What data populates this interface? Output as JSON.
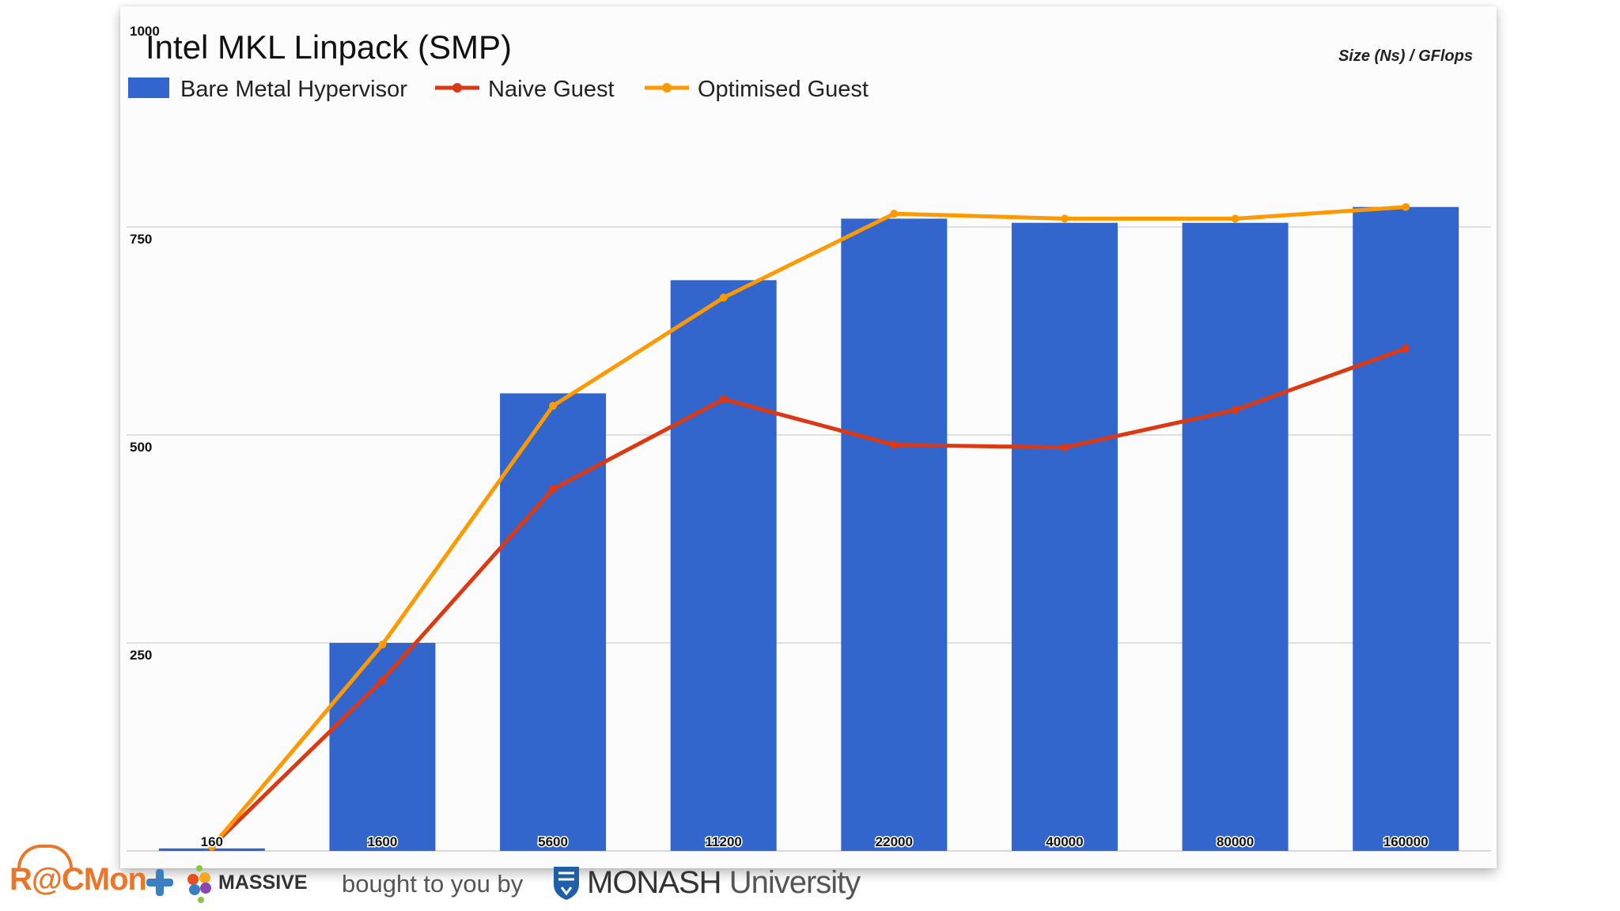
{
  "chart_data": {
    "type": "bar",
    "title": "Intel MKL Linpack (SMP)",
    "axis_note": "Size (Ns) / GFlops",
    "xlabel": "Size (Ns)",
    "ylabel": "GFlops",
    "ylim": [
      0,
      1000
    ],
    "yticks": [
      "250",
      "500",
      "750",
      "1000"
    ],
    "categories": [
      "160",
      "1600",
      "5600",
      "11200",
      "22000",
      "40000",
      "80000",
      "160000"
    ],
    "series": [
      {
        "name": "Bare Metal Hypervisor",
        "kind": "bar",
        "color": "#3366cc",
        "values": [
          3,
          250,
          550,
          686,
          760,
          755,
          755,
          774
        ]
      },
      {
        "name": "Naive Guest",
        "kind": "line",
        "color": "#dc3912",
        "values": [
          5,
          205,
          435,
          543,
          488,
          485,
          530,
          604
        ]
      },
      {
        "name": "Optimised Guest",
        "kind": "line",
        "color": "#ff9900",
        "values": [
          5,
          248,
          535,
          665,
          766,
          760,
          760,
          774
        ]
      }
    ],
    "legend_position": "top-left",
    "grid": true
  },
  "footer": {
    "racmon": "R@CMon",
    "massive": "MASSIVE",
    "bought": "bought to you by",
    "monash": "MONASH",
    "university": "University"
  }
}
